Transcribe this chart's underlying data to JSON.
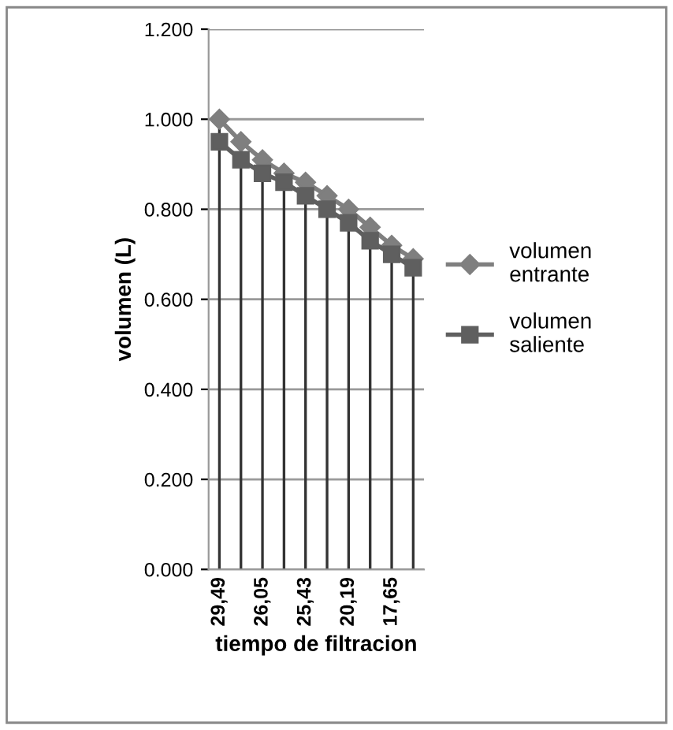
{
  "chart_data": {
    "type": "line",
    "xlabel": "tiempo de filtracion",
    "ylabel": "volumen (L)",
    "categories": [
      "29,49",
      null,
      "26,05",
      null,
      "25,43",
      null,
      "20,19",
      null,
      "17,65",
      null
    ],
    "series": [
      {
        "name": "volumen\nentrante",
        "color": "#7f7f7f",
        "marker": "diamond",
        "values": [
          1.0,
          0.95,
          0.91,
          0.88,
          0.86,
          0.83,
          0.8,
          0.76,
          0.72,
          0.69
        ]
      },
      {
        "name": "volumen\nsaliente",
        "color": "#5f5f5f",
        "marker": "square",
        "values": [
          0.95,
          0.91,
          0.88,
          0.86,
          0.83,
          0.8,
          0.77,
          0.73,
          0.7,
          0.67
        ]
      }
    ],
    "ylim": [
      0,
      1.2
    ],
    "yticks": [
      {
        "value": 0,
        "label": "0.000"
      },
      {
        "value": 0.2,
        "label": "0.200"
      },
      {
        "value": 0.4,
        "label": "0.400"
      },
      {
        "value": 0.6,
        "label": "0.600"
      },
      {
        "value": 0.8,
        "label": "0.800"
      },
      {
        "value": 1.0,
        "label": "1.000"
      },
      {
        "value": 1.2,
        "label": "1.200"
      }
    ],
    "grid": true,
    "legend": "right"
  }
}
